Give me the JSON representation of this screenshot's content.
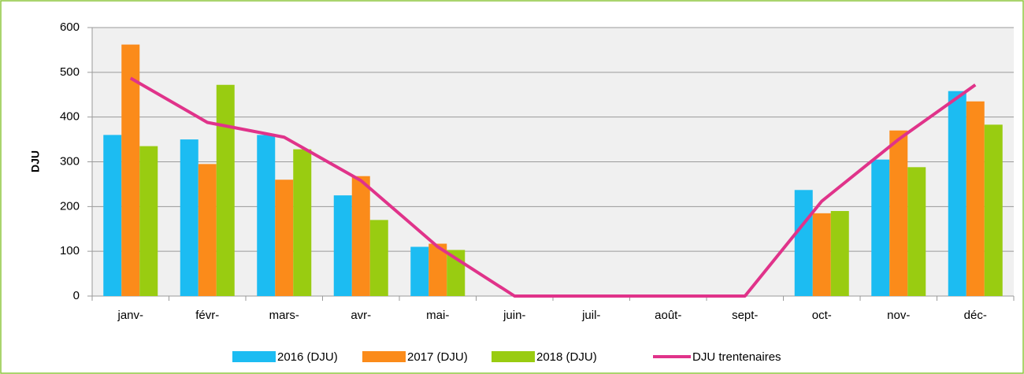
{
  "chart_data": {
    "type": "bar",
    "y_label": "DJU",
    "categories": [
      "janv-",
      "févr-",
      "mars-",
      "avr-",
      "mai-",
      "juin-",
      "juil-",
      "août-",
      "sept-",
      "oct-",
      "nov-",
      "déc-"
    ],
    "series": [
      {
        "name": "2016 (DJU)",
        "type": "bar",
        "color": "#1cbcf2",
        "values": [
          360,
          350,
          360,
          225,
          110,
          0,
          0,
          0,
          0,
          237,
          305,
          458
        ]
      },
      {
        "name": "2017 (DJU)",
        "type": "bar",
        "color": "#fb8b1a",
        "values": [
          562,
          295,
          260,
          268,
          117,
          0,
          0,
          0,
          0,
          185,
          370,
          435
        ]
      },
      {
        "name": "2018 (DJU)",
        "type": "bar",
        "color": "#99cc11",
        "values": [
          335,
          472,
          328,
          170,
          103,
          0,
          0,
          0,
          0,
          190,
          288,
          383
        ]
      },
      {
        "name": "DJU trentenaires",
        "type": "line",
        "color": "#e0338a",
        "values": [
          487,
          388,
          355,
          258,
          110,
          0,
          0,
          0,
          0,
          212,
          350,
          472
        ]
      }
    ],
    "ylim": [
      0,
      600
    ],
    "yticks": [
      0,
      100,
      200,
      300,
      400,
      500,
      600
    ],
    "grid": true,
    "legend": "bottom"
  }
}
